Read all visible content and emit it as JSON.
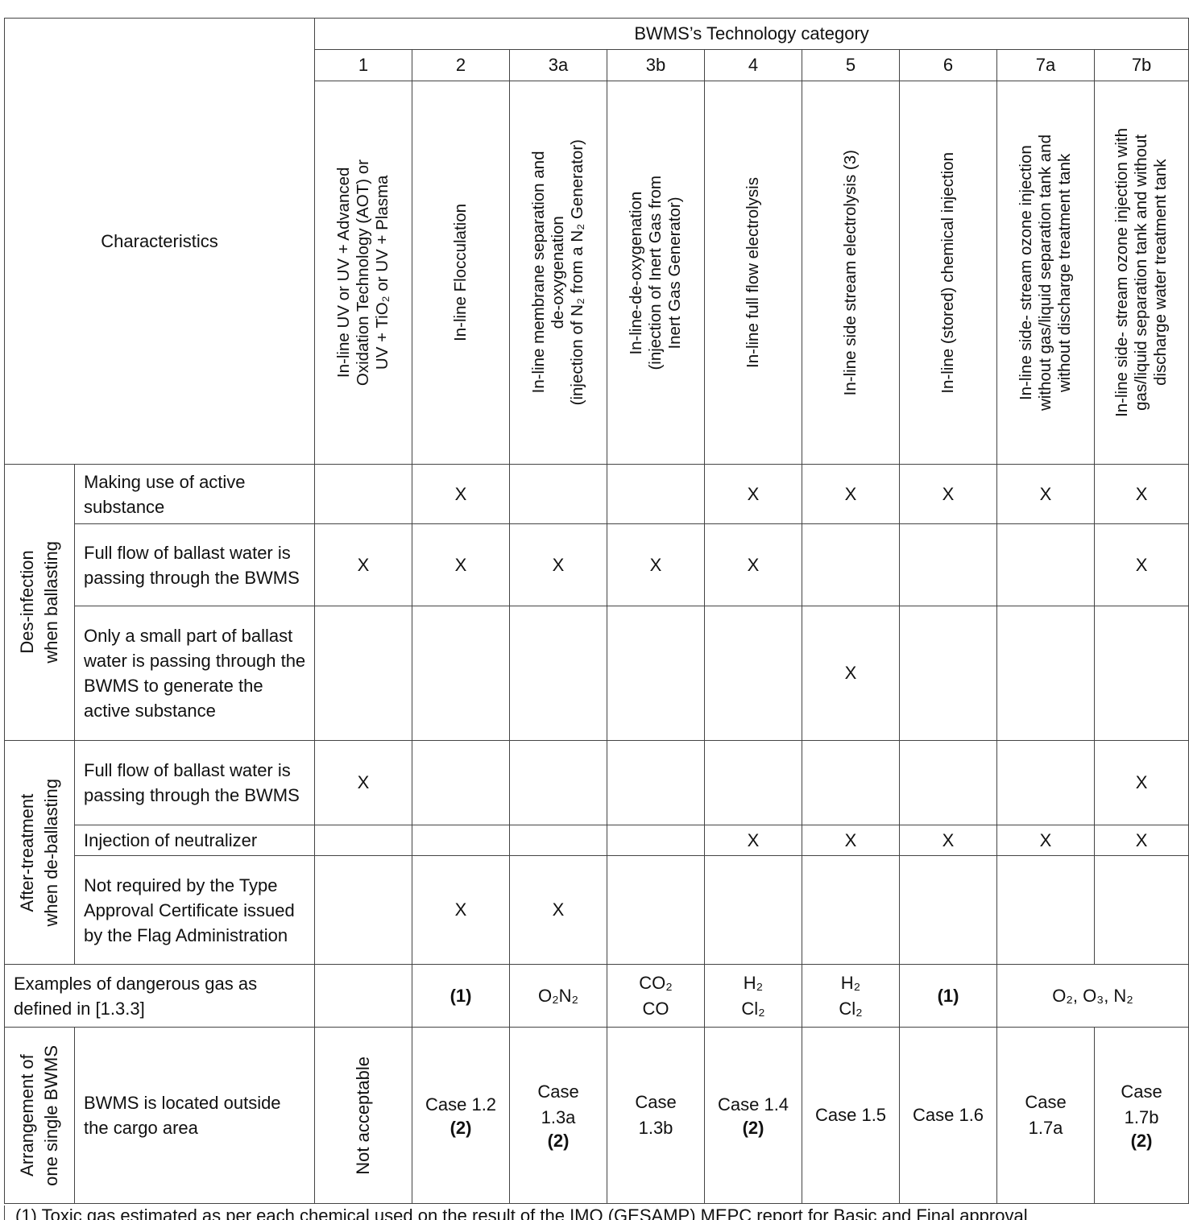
{
  "header": {
    "group_title": "BWMS’s Technology category",
    "characteristics_label": "Characteristics",
    "category_numbers": [
      "1",
      "2",
      "3a",
      "3b",
      "4",
      "5",
      "6",
      "7a",
      "7b"
    ],
    "category_names": [
      "In-line UV or UV + Advanced\nOxidation Technology (AOT) or\nUV + TiO₂ or UV + Plasma",
      "In-line Flocculation",
      "In-line membrane separation and\nde-oxygenation\n(injection of N₂ from a N₂ Generator)",
      "In-line-de-oxygenation\n(injection of Inert Gas from\nInert Gas Generator)",
      "In-line full flow electrolysis",
      "In-line side stream electrolysis  (3)",
      "In-line (stored) chemical injection",
      "In-line side- stream ozone injection\nwithout gas/liquid separation tank and\nwithout discharge treatment tank",
      "In-line side- stream ozone injection with\ngas/liquid separation tank and without\ndischarge water treatment tank"
    ]
  },
  "disinfection": {
    "group_label": "Des-infection\nwhen ballasting",
    "rows": [
      {
        "label": "Making use of active substance",
        "marks": [
          "",
          "X",
          "",
          "",
          "X",
          "X",
          "X",
          "X",
          "X"
        ]
      },
      {
        "label": "Full flow of ballast water is passing through the BWMS",
        "marks": [
          "X",
          "X",
          "X",
          "X",
          "X",
          "",
          "",
          "",
          "X"
        ]
      },
      {
        "label": "Only a small part of ballast water is passing through the BWMS to generate the active substance",
        "marks": [
          "",
          "",
          "",
          "",
          "",
          "X",
          "",
          "",
          ""
        ]
      }
    ]
  },
  "aftertreatment": {
    "group_label": "After-treatment\nwhen de-ballasting",
    "rows": [
      {
        "label": "Full flow of ballast water is passing through the BWMS",
        "marks": [
          "X",
          "",
          "",
          "",
          "",
          "",
          "",
          "",
          "X"
        ]
      },
      {
        "label": "Injection of neutralizer",
        "marks": [
          "",
          "",
          "",
          "",
          "X",
          "X",
          "X",
          "X",
          "X"
        ]
      },
      {
        "label": "Not required by the Type Approval Certificate issued by the Flag Administration",
        "marks": [
          "",
          "X",
          "X",
          "",
          "",
          "",
          "",
          "",
          ""
        ]
      }
    ]
  },
  "gas_row": {
    "label": "Examples of dangerous gas as defined in [1.3.3]",
    "cells": [
      "",
      "(1)",
      "O₂N₂",
      "CO₂\nCO",
      "H₂\nCl₂",
      "H₂\nCl₂",
      "(1)",
      "O₂, O₃, N₂"
    ]
  },
  "arrangement": {
    "group_label": "Arrangement of\none single BWMS",
    "label": "BWMS is located outside the cargo area",
    "cat1": "Not acceptable",
    "cases": [
      {
        "text": "Case 1.2",
        "note": "(2)"
      },
      {
        "text": "Case\n1.3a",
        "note": "(2)"
      },
      {
        "text": "Case\n1.3b",
        "note": ""
      },
      {
        "text": "Case 1.4",
        "note": "(2)"
      },
      {
        "text": "Case 1.5",
        "note": ""
      },
      {
        "text": "Case 1.6",
        "note": ""
      },
      {
        "text": "Case\n1.7a",
        "note": ""
      },
      {
        "text": "Case\n1.7b",
        "note": "(2)"
      }
    ]
  },
  "footnote": "(1)    Toxic gas estimated as per each chemical used on the result of the IMO (GESAMP) MEPC report for Basic and Final approval"
}
